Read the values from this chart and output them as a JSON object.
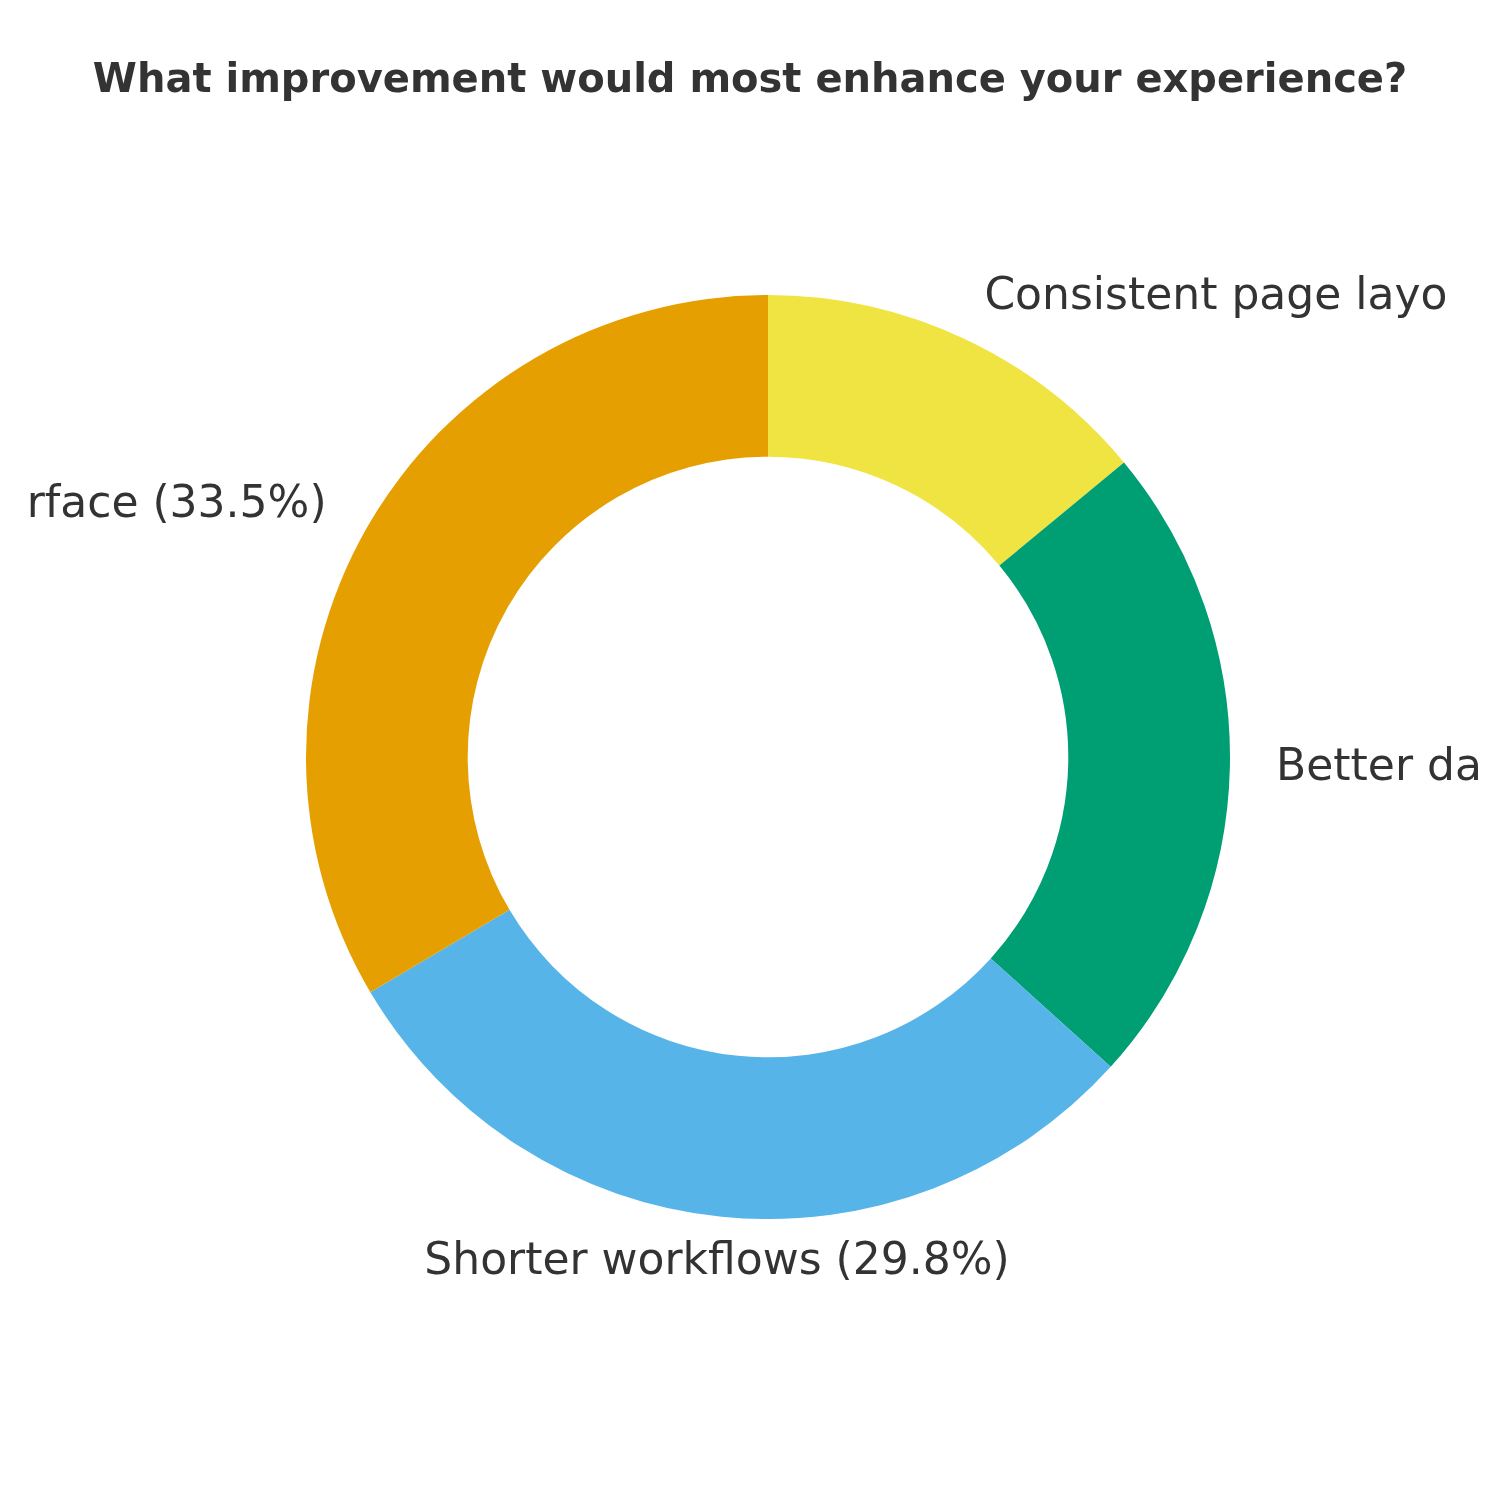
{
  "chart_data": {
    "type": "donut",
    "title": "What improvement would most enhance your experience?",
    "categories": [
      "Consistent page layo",
      "Better da",
      "Shorter workflows (29.8%)",
      "rface (33.5%)"
    ],
    "values": [
      14.0,
      22.7,
      29.8,
      33.5
    ],
    "colors": [
      "#f0e442",
      "#009e73",
      "#56b4e9",
      "#e69f00"
    ],
    "legend": false
  }
}
